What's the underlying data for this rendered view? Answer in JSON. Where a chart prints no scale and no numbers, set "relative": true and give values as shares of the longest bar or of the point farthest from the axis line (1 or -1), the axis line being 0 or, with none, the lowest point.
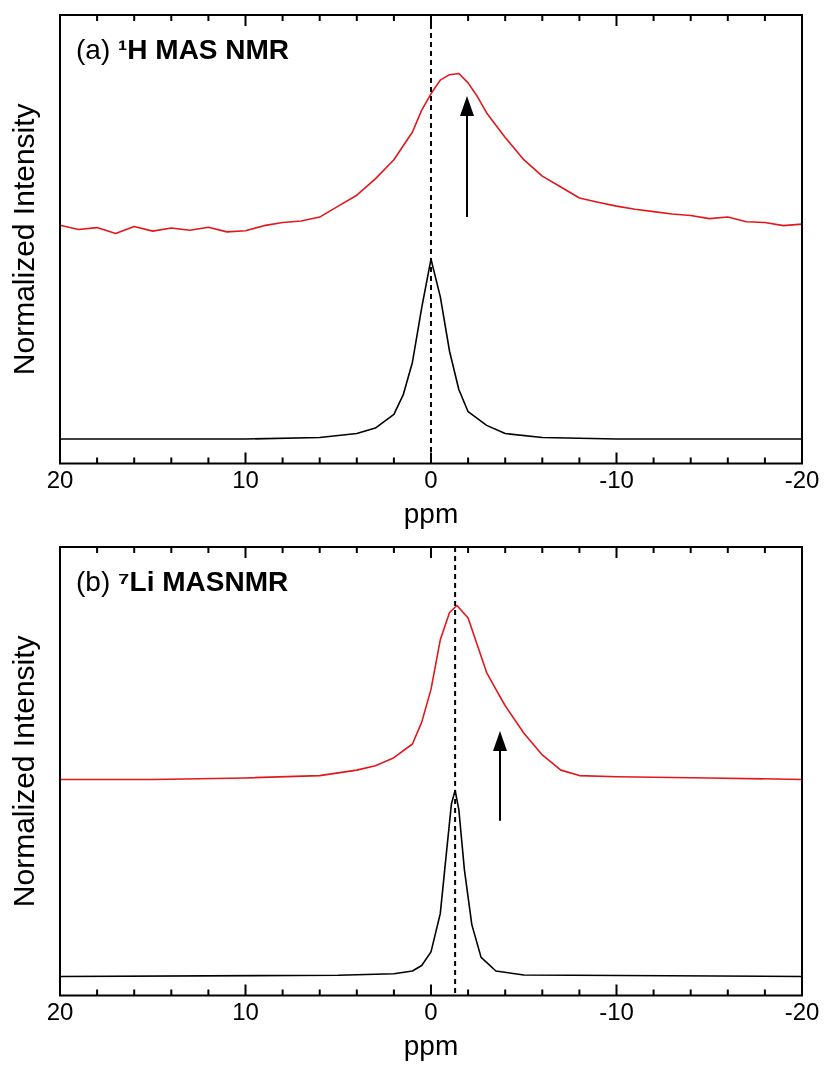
{
  "chart_data": [
    {
      "type": "line",
      "title": "(a) ¹H MAS NMR",
      "xlabel": "ppm",
      "ylabel": "Normalized Intensity",
      "relative": true,
      "xlim": [
        20,
        -20
      ],
      "xticks": [
        20,
        {
          "value": 18,
          "label": null
        },
        {
          "value": 16,
          "label": null
        },
        {
          "value": 14,
          "label": null
        },
        {
          "value": 12,
          "label": null
        },
        10,
        {
          "value": 8,
          "label": null
        },
        {
          "value": 6,
          "label": null
        },
        {
          "value": 4,
          "label": null
        },
        {
          "value": 2,
          "label": null
        },
        0,
        {
          "value": -2,
          "label": null
        },
        {
          "value": -4,
          "label": null
        },
        {
          "value": -6,
          "label": null
        },
        {
          "value": -8,
          "label": null
        },
        -10,
        {
          "value": -12,
          "label": null
        },
        {
          "value": -14,
          "label": null
        },
        {
          "value": -16,
          "label": null
        },
        {
          "value": -18,
          "label": null
        },
        -20
      ],
      "series": [
        {
          "color": "#e3171b",
          "x": [
            20,
            19,
            18,
            17,
            16,
            15,
            14,
            13,
            12,
            11,
            10,
            9,
            8,
            7,
            6,
            5,
            4,
            3,
            2,
            1,
            0.5,
            0,
            -0.5,
            -1,
            -1.5,
            -2,
            -2.5,
            -3,
            -4,
            -5,
            -6,
            -7,
            -8,
            -9,
            -10,
            -11,
            -12,
            -13,
            -14,
            -15,
            -16,
            -17,
            -18,
            -19,
            -20
          ],
          "values": [
            0.611,
            0.6,
            0.605,
            0.59,
            0.608,
            0.596,
            0.604,
            0.598,
            0.606,
            0.594,
            0.597,
            0.61,
            0.618,
            0.622,
            0.632,
            0.66,
            0.688,
            0.73,
            0.779,
            0.85,
            0.906,
            0.948,
            0.983,
            0.997,
            1,
            0.976,
            0.941,
            0.899,
            0.836,
            0.779,
            0.737,
            0.709,
            0.681,
            0.67,
            0.66,
            0.652,
            0.646,
            0.64,
            0.636,
            0.628,
            0.632,
            0.62,
            0.618,
            0.61,
            0.614
          ]
        },
        {
          "color": "#000000",
          "x": [
            20,
            10,
            6,
            4,
            3,
            2,
            1.5,
            1,
            0.5,
            0,
            -0.5,
            -1,
            -1.5,
            -2,
            -3,
            -4,
            -6,
            -10,
            -20
          ],
          "values": [
            0.063,
            0.063,
            0.067,
            0.077,
            0.091,
            0.126,
            0.176,
            0.26,
            0.4,
            0.524,
            0.428,
            0.288,
            0.19,
            0.133,
            0.098,
            0.077,
            0.067,
            0.063,
            0.063
          ]
        }
      ],
      "ref_lines": [
        {
          "axis": "x",
          "value": 0,
          "color": "#000000",
          "line_style": "dashed"
        }
      ]
    },
    {
      "type": "line",
      "title": "(b) ⁷Li MASNMR",
      "xlabel": "ppm",
      "ylabel": "Normalized Intensity",
      "relative": true,
      "xlim": [
        20,
        -20
      ],
      "xticks": [
        20,
        {
          "value": 18,
          "label": null
        },
        {
          "value": 16,
          "label": null
        },
        {
          "value": 14,
          "label": null
        },
        {
          "value": 12,
          "label": null
        },
        10,
        {
          "value": 8,
          "label": null
        },
        {
          "value": 6,
          "label": null
        },
        {
          "value": 4,
          "label": null
        },
        {
          "value": 2,
          "label": null
        },
        0,
        {
          "value": -2,
          "label": null
        },
        {
          "value": -4,
          "label": null
        },
        {
          "value": -6,
          "label": null
        },
        {
          "value": -8,
          "label": null
        },
        -10,
        {
          "value": -12,
          "label": null
        },
        {
          "value": -14,
          "label": null
        },
        {
          "value": -16,
          "label": null
        },
        {
          "value": -18,
          "label": null
        },
        -20
      ],
      "series": [
        {
          "color": "#e3171b",
          "x": [
            20,
            15,
            10,
            6,
            4,
            3,
            2,
            1,
            0.5,
            0,
            -0.5,
            -1,
            -1.4,
            -2,
            -2.5,
            -3,
            -3.5,
            -4,
            -5,
            -6,
            -7,
            -8,
            -10,
            -15,
            -20
          ],
          "values": [
            0.554,
            0.554,
            0.558,
            0.564,
            0.578,
            0.589,
            0.61,
            0.645,
            0.701,
            0.785,
            0.912,
            0.982,
            1,
            0.968,
            0.898,
            0.828,
            0.785,
            0.743,
            0.673,
            0.617,
            0.578,
            0.564,
            0.561,
            0.558,
            0.554
          ]
        },
        {
          "color": "#000000",
          "x": [
            20,
            5,
            2,
            1,
            0.5,
            0,
            -0.5,
            -0.8,
            -1.1,
            -1.3,
            -1.5,
            -1.8,
            -2.2,
            -2.7,
            -3.5,
            -5,
            -20
          ],
          "values": [
            0.049,
            0.052,
            0.056,
            0.063,
            0.077,
            0.112,
            0.21,
            0.351,
            0.491,
            0.526,
            0.477,
            0.323,
            0.182,
            0.098,
            0.063,
            0.053,
            0.049
          ]
        }
      ],
      "ref_lines": [
        {
          "axis": "x",
          "value": -1.3,
          "color": "#000000",
          "line_style": "dashed"
        }
      ]
    }
  ]
}
